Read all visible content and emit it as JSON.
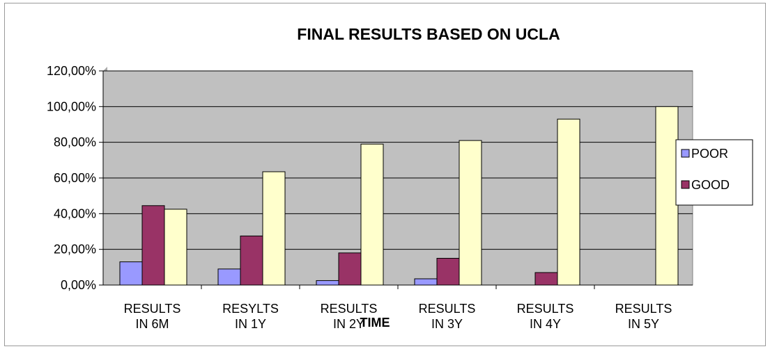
{
  "chart_data": {
    "type": "bar",
    "title": "FINAL RESULTS BASED ON UCLA",
    "xlabel": "TIME",
    "ylabel": "",
    "ylim": [
      0,
      1.2
    ],
    "yticks": [
      "0,00%",
      "20,00%",
      "40,00%",
      "60,00%",
      "80,00%",
      "100,00%",
      "120,00%"
    ],
    "categories": [
      [
        "RESULTS",
        "IN 6M"
      ],
      [
        "RESYLTS",
        "IN 1Y"
      ],
      [
        "RESULTS",
        "IN 2Y"
      ],
      [
        "RESULTS",
        "IN 3Y"
      ],
      [
        "RESULTS",
        "IN 4Y"
      ],
      [
        "RESULTS",
        "IN 5Y"
      ]
    ],
    "series": [
      {
        "name": "POOR",
        "color": "#9999ff",
        "values": [
          0.13,
          0.09,
          0.025,
          0.035,
          0.0,
          0.0
        ]
      },
      {
        "name": "GOOD",
        "color": "#993366",
        "values": [
          0.445,
          0.275,
          0.18,
          0.15,
          0.07,
          0.0
        ]
      },
      {
        "color": "#ffffcc",
        "values": [
          0.425,
          0.635,
          0.79,
          0.81,
          0.93,
          1.0
        ]
      }
    ],
    "plot_background": "#c0c0c0",
    "grid": true,
    "legend": "right"
  }
}
